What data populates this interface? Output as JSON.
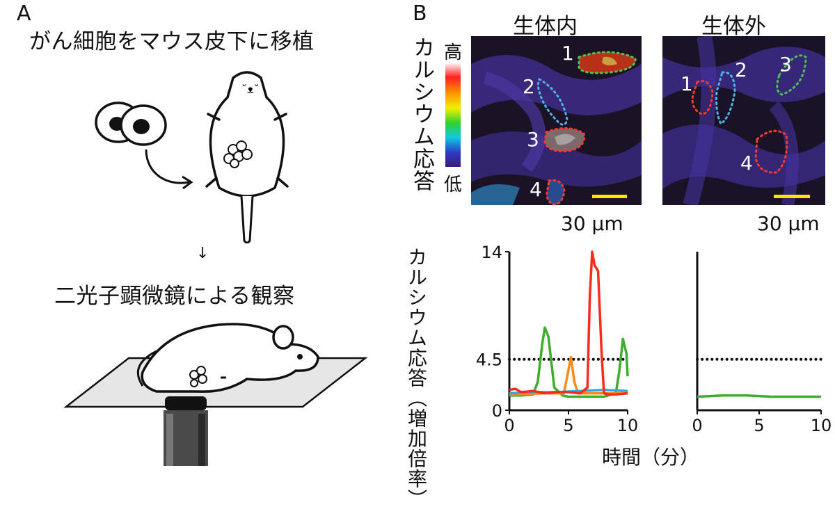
{
  "panel_a": {
    "letter": "A",
    "step1_text": "がん細胞をマウス皮下に移植",
    "step2_text": "二光子顕微鏡による観察",
    "arrow_glyph": "↓"
  },
  "panel_b": {
    "letter": "B",
    "in_vivo_title": "生体内",
    "ex_vivo_title": "生体外",
    "colorbar_label": "カルシウム応答",
    "colorbar_high": "高",
    "colorbar_low": "低",
    "scalebar_label_left": "30 µm",
    "scalebar_label_right": "30 µm",
    "scalebar_color": "#ffe400",
    "in_vivo_rois": [
      {
        "label": "1",
        "color": "#4ec24e"
      },
      {
        "label": "2",
        "color": "#4ab6e8"
      },
      {
        "label": "3",
        "color": "#ff3b2f"
      },
      {
        "label": "4",
        "color": "#ff3b2f"
      }
    ],
    "ex_vivo_rois": [
      {
        "label": "1",
        "color": "#ff3b2f"
      },
      {
        "label": "2",
        "color": "#4ab6e8"
      },
      {
        "label": "3",
        "color": "#4ec24e"
      },
      {
        "label": "4",
        "color": "#ff3b2f"
      }
    ]
  },
  "chart_data": [
    {
      "type": "line",
      "ylabel": "カルシウム応答（増加倍率）",
      "ylim": [
        0,
        14
      ],
      "xlim": [
        0,
        10
      ],
      "y_tick_labels": [
        "0",
        "14"
      ],
      "x_tick_labels": [
        "0",
        "5",
        "10"
      ],
      "threshold": {
        "value": 4.5,
        "label": "4.5",
        "label_color": "#ff2a1a",
        "style": "dotted"
      },
      "series": [
        {
          "color": "#3dae2b",
          "x": [
            0,
            1,
            2,
            2.4,
            2.8,
            3.0,
            3.3,
            3.8,
            4.5,
            5,
            6,
            7,
            8,
            9,
            9.3,
            9.6,
            9.9,
            10
          ],
          "y": [
            1.3,
            1.3,
            1.4,
            2.5,
            6.0,
            7.3,
            6.5,
            2.0,
            1.3,
            1.2,
            1.2,
            1.2,
            1.2,
            1.5,
            3.5,
            6.3,
            5.0,
            3.0
          ]
        },
        {
          "color": "#ff8a1c",
          "x": [
            0,
            3,
            4.6,
            4.9,
            5.2,
            5.5,
            5.8,
            7,
            10
          ],
          "y": [
            1.4,
            1.5,
            1.5,
            3.0,
            4.7,
            2.5,
            1.5,
            1.5,
            1.5
          ]
        },
        {
          "color": "#2fa9e0",
          "x": [
            0,
            2,
            4,
            6,
            8,
            10
          ],
          "y": [
            1.5,
            1.6,
            1.6,
            1.7,
            1.8,
            1.7
          ]
        },
        {
          "color": "#ff2a1a",
          "x": [
            0,
            0.5,
            1,
            2,
            3,
            4,
            5,
            6,
            6.6,
            6.8,
            7.0,
            7.2,
            7.5,
            7.8,
            8.0,
            8.3,
            9,
            10
          ],
          "y": [
            1.8,
            1.9,
            1.6,
            1.7,
            1.5,
            1.6,
            1.6,
            1.5,
            2.0,
            10.0,
            14.0,
            12.8,
            12.3,
            5.0,
            1.5,
            1.4,
            1.4,
            1.5
          ]
        }
      ]
    },
    {
      "type": "line",
      "xlabel": "時間（分）",
      "ylim": [
        0,
        14
      ],
      "xlim": [
        0,
        10
      ],
      "x_tick_labels": [
        "0",
        "5",
        "10"
      ],
      "threshold": {
        "value": 4.5,
        "style": "dotted"
      },
      "series": [
        {
          "color": "#3dae2b",
          "x": [
            0,
            2,
            4,
            6,
            8,
            10
          ],
          "y": [
            1.2,
            1.3,
            1.3,
            1.2,
            1.2,
            1.2
          ]
        }
      ]
    }
  ]
}
